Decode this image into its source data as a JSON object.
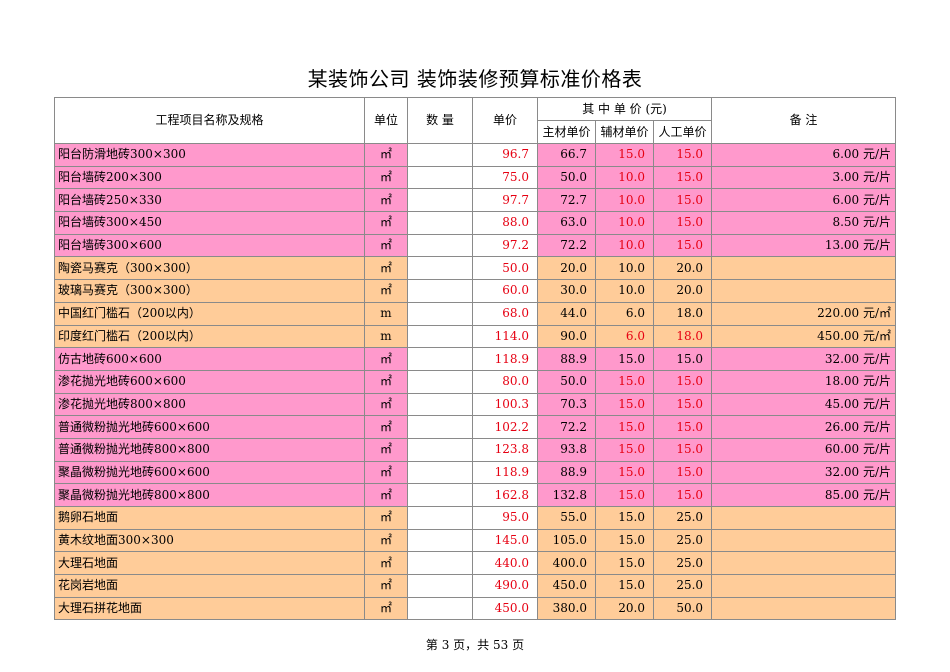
{
  "title": "某装饰公司 装饰装修预算标准价格表",
  "headers": {
    "name": "工程项目名称及规格",
    "unit": "单位",
    "quantity": "数 量",
    "price": "单价",
    "breakdown": "其 中 单 价  (元)",
    "main_material": "主材单价",
    "aux_material": "辅材单价",
    "labor": "人工单价",
    "note": "备  注"
  },
  "colors": {
    "pink": "#ff99cc",
    "orange": "#ffcc99",
    "red_text": "#e60012"
  },
  "rows": [
    {
      "name": "阳台防滑地砖300×300",
      "unit": "㎡",
      "quantity": "",
      "price": "96.7",
      "main": "66.7",
      "aux": "15.0",
      "labor": "15.0",
      "note": "6.00 元/片",
      "color": "pink",
      "aux_red": true,
      "labor_red": true
    },
    {
      "name": "阳台墙砖200×300",
      "unit": "㎡",
      "quantity": "",
      "price": "75.0",
      "main": "50.0",
      "aux": "10.0",
      "labor": "15.0",
      "note": "3.00 元/片",
      "color": "pink",
      "aux_red": true,
      "labor_red": true
    },
    {
      "name": "阳台墙砖250×330",
      "unit": "㎡",
      "quantity": "",
      "price": "97.7",
      "main": "72.7",
      "aux": "10.0",
      "labor": "15.0",
      "note": "6.00 元/片",
      "color": "pink",
      "aux_red": true,
      "labor_red": true
    },
    {
      "name": "阳台墙砖300×450",
      "unit": "㎡",
      "quantity": "",
      "price": "88.0",
      "main": "63.0",
      "aux": "10.0",
      "labor": "15.0",
      "note": "8.50 元/片",
      "color": "pink",
      "aux_red": true,
      "labor_red": true
    },
    {
      "name": "阳台墙砖300×600",
      "unit": "㎡",
      "quantity": "",
      "price": "97.2",
      "main": "72.2",
      "aux": "10.0",
      "labor": "15.0",
      "note": "13.00 元/片",
      "color": "pink",
      "aux_red": true,
      "labor_red": true
    },
    {
      "name": "陶瓷马赛克（300×300）",
      "unit": "㎡",
      "quantity": "",
      "price": "50.0",
      "main": "20.0",
      "aux": "10.0",
      "labor": "20.0",
      "note": "",
      "color": "orange",
      "aux_red": false,
      "labor_red": false
    },
    {
      "name": "玻璃马赛克（300×300）",
      "unit": "㎡",
      "quantity": "",
      "price": "60.0",
      "main": "30.0",
      "aux": "10.0",
      "labor": "20.0",
      "note": "",
      "color": "orange",
      "aux_red": false,
      "labor_red": false
    },
    {
      "name": "中国红门槛石（200以内）",
      "unit": "m",
      "quantity": "",
      "price": "68.0",
      "main": "44.0",
      "aux": "6.0",
      "labor": "18.0",
      "note": "220.00 元/㎡",
      "color": "orange",
      "aux_red": false,
      "labor_red": false
    },
    {
      "name": "印度红门槛石（200以内）",
      "unit": "m",
      "quantity": "",
      "price": "114.0",
      "main": "90.0",
      "aux": "6.0",
      "labor": "18.0",
      "note": "450.00 元/㎡",
      "color": "orange",
      "aux_red": true,
      "labor_red": true
    },
    {
      "name": "仿古地砖600×600",
      "unit": "㎡",
      "quantity": "",
      "price": "118.9",
      "main": "88.9",
      "aux": "15.0",
      "labor": "15.0",
      "note": "32.00 元/片",
      "color": "pink",
      "aux_red": false,
      "labor_red": false
    },
    {
      "name": "渗花抛光地砖600×600",
      "unit": "㎡",
      "quantity": "",
      "price": "80.0",
      "main": "50.0",
      "aux": "15.0",
      "labor": "15.0",
      "note": "18.00 元/片",
      "color": "pink",
      "aux_red": true,
      "labor_red": true
    },
    {
      "name": "渗花抛光地砖800×800",
      "unit": "㎡",
      "quantity": "",
      "price": "100.3",
      "main": "70.3",
      "aux": "15.0",
      "labor": "15.0",
      "note": "45.00 元/片",
      "color": "pink",
      "aux_red": true,
      "labor_red": true
    },
    {
      "name": "普通微粉抛光地砖600×600",
      "unit": "㎡",
      "quantity": "",
      "price": "102.2",
      "main": "72.2",
      "aux": "15.0",
      "labor": "15.0",
      "note": "26.00 元/片",
      "color": "pink",
      "aux_red": true,
      "labor_red": true
    },
    {
      "name": "普通微粉抛光地砖800×800",
      "unit": "㎡",
      "quantity": "",
      "price": "123.8",
      "main": "93.8",
      "aux": "15.0",
      "labor": "15.0",
      "note": "60.00 元/片",
      "color": "pink",
      "aux_red": true,
      "labor_red": true
    },
    {
      "name": "聚晶微粉抛光地砖600×600",
      "unit": "㎡",
      "quantity": "",
      "price": "118.9",
      "main": "88.9",
      "aux": "15.0",
      "labor": "15.0",
      "note": "32.00 元/片",
      "color": "pink",
      "aux_red": true,
      "labor_red": true
    },
    {
      "name": "聚晶微粉抛光地砖800×800",
      "unit": "㎡",
      "quantity": "",
      "price": "162.8",
      "main": "132.8",
      "aux": "15.0",
      "labor": "15.0",
      "note": "85.00 元/片",
      "color": "pink",
      "aux_red": true,
      "labor_red": true
    },
    {
      "name": "鹅卵石地面",
      "unit": "㎡",
      "quantity": "",
      "price": "95.0",
      "main": "55.0",
      "aux": "15.0",
      "labor": "25.0",
      "note": "",
      "color": "orange",
      "aux_red": false,
      "labor_red": false
    },
    {
      "name": "黄木纹地面300×300",
      "unit": "㎡",
      "quantity": "",
      "price": "145.0",
      "main": "105.0",
      "aux": "15.0",
      "labor": "25.0",
      "note": "",
      "color": "orange",
      "aux_red": false,
      "labor_red": false
    },
    {
      "name": "大理石地面",
      "unit": "㎡",
      "quantity": "",
      "price": "440.0",
      "main": "400.0",
      "aux": "15.0",
      "labor": "25.0",
      "note": "",
      "color": "orange",
      "aux_red": false,
      "labor_red": false
    },
    {
      "name": "花岗岩地面",
      "unit": "㎡",
      "quantity": "",
      "price": "490.0",
      "main": "450.0",
      "aux": "15.0",
      "labor": "25.0",
      "note": "",
      "color": "orange",
      "aux_red": false,
      "labor_red": false
    },
    {
      "name": "大理石拼花地面",
      "unit": "㎡",
      "quantity": "",
      "price": "450.0",
      "main": "380.0",
      "aux": "20.0",
      "labor": "50.0",
      "note": "",
      "color": "orange",
      "aux_red": false,
      "labor_red": false
    }
  ],
  "footer": "第 3 页，共 53 页"
}
